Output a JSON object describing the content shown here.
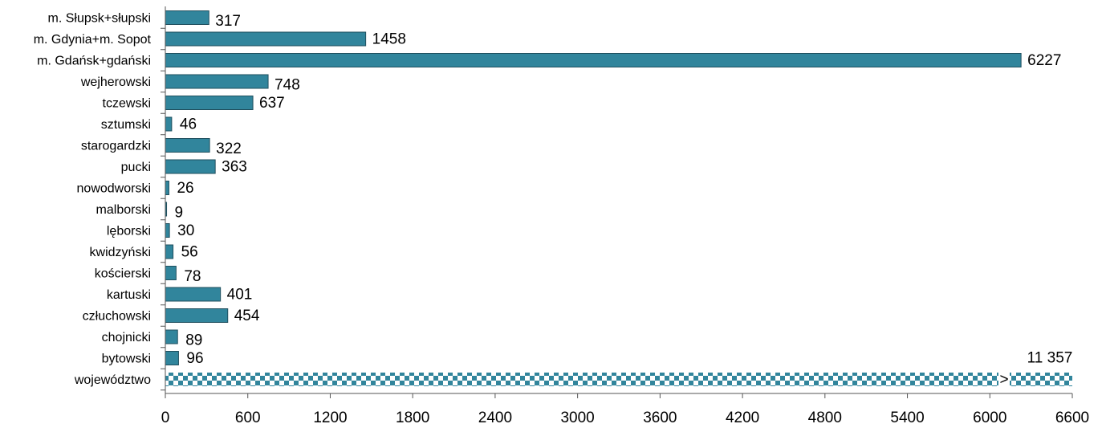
{
  "chart_data": {
    "type": "bar",
    "orientation": "horizontal",
    "categories": [
      "m. Słupsk+słupski",
      "m. Gdynia+m. Sopot",
      "m. Gdańsk+gdański",
      "wejherowski",
      "tczewski",
      "sztumski",
      "starogardzki",
      "pucki",
      "nowodworski",
      "malborski",
      "lęborski",
      "kwidzyński",
      "kościerski",
      "kartuski",
      "człuchowski",
      "chojnicki",
      "bytowski",
      "województwo"
    ],
    "values": [
      317,
      1458,
      6227,
      748,
      637,
      46,
      322,
      363,
      26,
      9,
      30,
      56,
      78,
      401,
      454,
      89,
      96,
      11357
    ],
    "value_labels": [
      "317",
      "1458",
      "6227",
      "748",
      "637",
      "46",
      "322",
      "363",
      "26",
      "9",
      "30",
      "56",
      "78",
      "401",
      "454",
      "89",
      "96",
      "11 357"
    ],
    "xlim": [
      0,
      6600
    ],
    "xticks": [
      0,
      600,
      1200,
      1800,
      2400,
      3000,
      3600,
      4200,
      4800,
      5400,
      6000,
      6600
    ],
    "grid": false,
    "legend": "none",
    "axis_break_marker": ">",
    "colors": {
      "bar": "#31859c",
      "bar_stroke": "#1f4f5e",
      "total_pattern_dark": "#31859c",
      "total_pattern_light": "#ffffff"
    }
  }
}
